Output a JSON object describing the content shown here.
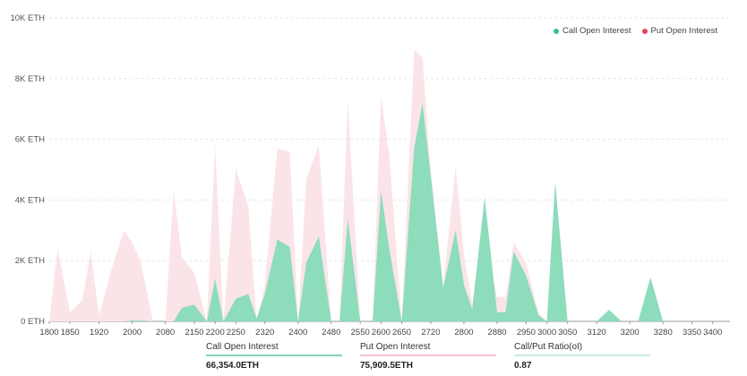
{
  "colors": {
    "call": "#8ddcbc",
    "call_dot": "#36c18c",
    "put": "#fbe4e8",
    "put_dot": "#e8405c",
    "call_bar": "#7fd8b3",
    "put_bar": "#f7c5cf",
    "ratio_bar": "#c8ecde"
  },
  "legend": [
    {
      "name": "Call Open Interest",
      "color_key": "call_dot"
    },
    {
      "name": "Put  Open Interest",
      "color_key": "put_dot"
    }
  ],
  "summary": {
    "call": {
      "label": "Call Open Interest",
      "value": "66,354.0ETH"
    },
    "put": {
      "label": "Put Open Interest",
      "value": "75,909.5ETH"
    },
    "ratio": {
      "label": "Call/Put Ratio(oI)",
      "value": "0.87"
    }
  },
  "chart_data": {
    "type": "area",
    "title": "",
    "xlabel": "",
    "ylabel": "",
    "ylim": [
      0,
      10000
    ],
    "y_ticks": [
      0,
      2000,
      4000,
      6000,
      8000,
      10000
    ],
    "y_tick_labels": [
      "0 ETH",
      "2K ETH",
      "4K ETH",
      "6K ETH",
      "8K ETH",
      "10K ETH"
    ],
    "grid": true,
    "legend_position": "top-right",
    "x": [
      1800,
      1820,
      1850,
      1880,
      1900,
      1920,
      1950,
      1980,
      2000,
      2020,
      2050,
      2080,
      2100,
      2120,
      2150,
      2180,
      2200,
      2220,
      2250,
      2280,
      2300,
      2320,
      2350,
      2380,
      2400,
      2420,
      2450,
      2480,
      2500,
      2520,
      2550,
      2580,
      2600,
      2620,
      2650,
      2680,
      2700,
      2720,
      2750,
      2780,
      2800,
      2820,
      2850,
      2880,
      2900,
      2920,
      2950,
      2980,
      3000,
      3020,
      3050,
      3080,
      3100,
      3120,
      3150,
      3180,
      3200,
      3220,
      3250,
      3280,
      3300,
      3320,
      3350,
      3380,
      3400,
      3420
    ],
    "x_tick_labels": [
      "1800",
      "1850",
      "1920",
      "2000",
      "2080",
      "2150",
      "2200",
      "2250",
      "2320",
      "2400",
      "2480",
      "2550",
      "2600",
      "2650",
      "2720",
      "2800",
      "2880",
      "2950",
      "3000",
      "3050",
      "3120",
      "3200",
      "3280",
      "3350",
      "3400"
    ],
    "series": [
      {
        "name": "Call Open Interest",
        "values": [
          0,
          0,
          0,
          0,
          0,
          0,
          0,
          0,
          30,
          30,
          0,
          0,
          0,
          450,
          550,
          0,
          1400,
          0,
          750,
          900,
          100,
          900,
          2700,
          2450,
          0,
          1950,
          2800,
          0,
          0,
          3400,
          0,
          0,
          4300,
          2400,
          0,
          5700,
          7200,
          4800,
          1100,
          3000,
          1200,
          400,
          4100,
          300,
          300,
          2300,
          1500,
          200,
          0,
          4600,
          0,
          0,
          0,
          0,
          380,
          0,
          0,
          0,
          1450,
          0,
          0,
          0,
          0,
          0,
          0,
          0
        ]
      },
      {
        "name": "Put  Open Interest",
        "values": [
          0,
          2400,
          300,
          700,
          2300,
          200,
          1700,
          3000,
          2600,
          2000,
          0,
          0,
          4300,
          2100,
          1600,
          0,
          5800,
          0,
          5000,
          3800,
          0,
          1200,
          5700,
          5600,
          0,
          4700,
          5800,
          0,
          0,
          7300,
          0,
          0,
          7400,
          5500,
          0,
          8950,
          8700,
          5000,
          1200,
          5100,
          2200,
          600,
          2700,
          800,
          800,
          2600,
          1900,
          300,
          0,
          4500,
          0,
          0,
          0,
          0,
          0,
          0,
          0,
          0,
          0,
          0,
          0,
          0,
          0,
          0,
          0,
          0
        ]
      }
    ]
  }
}
